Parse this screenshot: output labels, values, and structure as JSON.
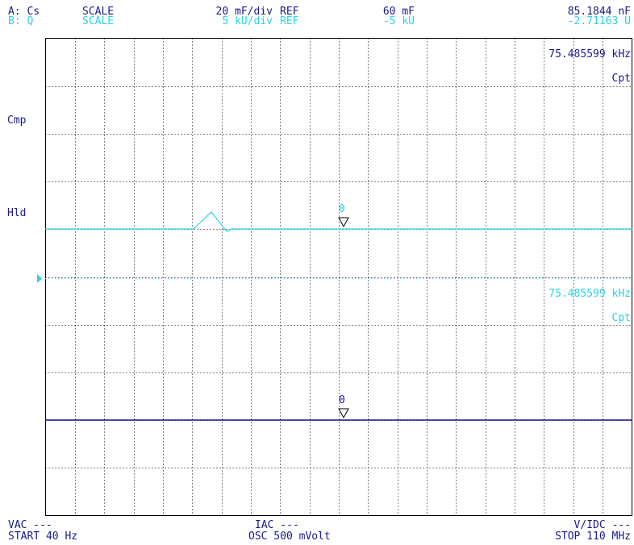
{
  "header": {
    "row_a": {
      "label": "A: Cs",
      "scale_word": "SCALE",
      "scale_value": "20 mF/div",
      "ref_word": "REF",
      "ref_value": "60 mF",
      "marker_value": "85.1844 nF"
    },
    "row_b": {
      "label": "B: Q",
      "scale_word": "SCALE",
      "scale_value": "5 kU/div",
      "ref_word": "REF",
      "ref_value": "-5 kU",
      "marker_value": "-2.71163 U"
    }
  },
  "side_labels": {
    "cmp": "Cmp",
    "hld": "Hld"
  },
  "trace_a": {
    "marker_freq": "75.485599 kHz",
    "marker_param": "Cpt",
    "marker_number": "0"
  },
  "trace_b": {
    "marker_freq": "75.485599 kHz",
    "marker_param": "Cpt",
    "marker_number": "0"
  },
  "footer": {
    "vac": "VAC ---",
    "iac": "IAC ---",
    "vdc": "V/IDC ---",
    "start": "START 40 Hz",
    "osc": "OSC 500 mVolt",
    "stop": "STOP 110 MHz"
  },
  "colors": {
    "trace_a": "#29d3e6",
    "trace_b": "#1a1a8c",
    "grid": "#000000",
    "text": "#1a1a8c"
  }
}
